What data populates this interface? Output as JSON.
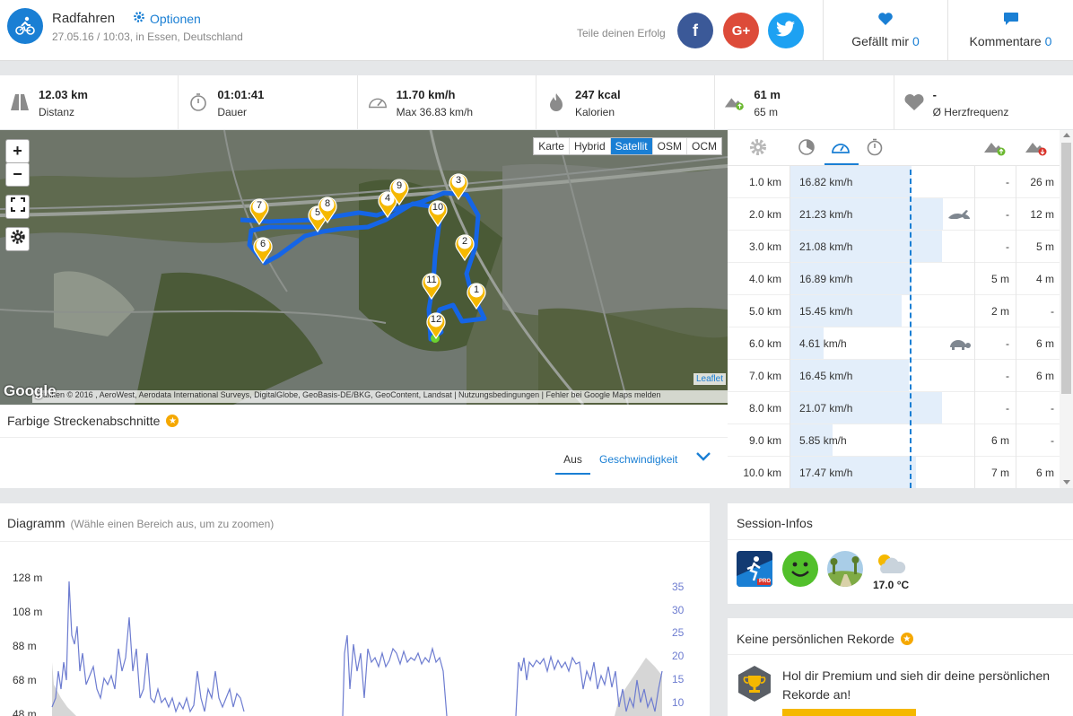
{
  "header": {
    "title": "Radfahren",
    "options_label": "Optionen",
    "meta": "27.05.16 / 10:03, in Essen, Deutschland",
    "share_label": "Teile deinen Erfolg",
    "social": {
      "facebook": "f",
      "google": "G+"
    },
    "like_label": "Gefällt mir",
    "like_count": "0",
    "comment_label": "Kommentare",
    "comment_count": "0"
  },
  "stats": [
    {
      "icon": "road-icon",
      "value": "12.03 km",
      "label": "Distanz"
    },
    {
      "icon": "stopwatch-icon",
      "value": "01:01:41",
      "label": "Dauer"
    },
    {
      "icon": "speedometer-icon",
      "value": "11.70 km/h",
      "label": "Max 36.83 km/h"
    },
    {
      "icon": "flame-icon",
      "value": "247 kcal",
      "label": "Kalorien"
    },
    {
      "icon": "elevation-up-icon",
      "value": "61 m",
      "label": "65 m"
    },
    {
      "icon": "heart-icon",
      "value": "-",
      "label": "Ø Herzfrequenz"
    }
  ],
  "map": {
    "zoom_in": "+",
    "zoom_out": "−",
    "types": [
      "Karte",
      "Hybrid",
      "Satellit",
      "OSM",
      "OCM"
    ],
    "active_type": "Satellit",
    "attribution": "Grafiken © 2016 , AeroWest, Aerodata International Surveys, DigitalGlobe, GeoBasis-DE/BKG, GeoContent, Landsat  |  Nutzungsbedingungen  |  Fehler bei Google Maps melden",
    "leaflet": "Leaflet",
    "google": "Google",
    "markers": [
      "1",
      "2",
      "3",
      "4",
      "5",
      "6",
      "7",
      "8",
      "9",
      "10",
      "11",
      "12"
    ]
  },
  "segments": {
    "title": "Farbige Streckenabschnitte",
    "option_off": "Aus",
    "option_speed": "Geschwindigkeit"
  },
  "splits": {
    "rows": [
      {
        "km": "1.0 km",
        "speed": "16.82 km/h",
        "speed_value": 16.82,
        "up": "-",
        "down": "26 m",
        "badge": ""
      },
      {
        "km": "2.0 km",
        "speed": "21.23 km/h",
        "speed_value": 21.23,
        "up": "-",
        "down": "12 m",
        "badge": "hare-icon"
      },
      {
        "km": "3.0 km",
        "speed": "21.08 km/h",
        "speed_value": 21.08,
        "up": "-",
        "down": "5 m",
        "badge": ""
      },
      {
        "km": "4.0 km",
        "speed": "16.89 km/h",
        "speed_value": 16.89,
        "up": "5 m",
        "down": "4 m",
        "badge": ""
      },
      {
        "km": "5.0 km",
        "speed": "15.45 km/h",
        "speed_value": 15.45,
        "up": "2 m",
        "down": "-",
        "badge": ""
      },
      {
        "km": "6.0 km",
        "speed": "4.61 km/h",
        "speed_value": 4.61,
        "up": "-",
        "down": "6 m",
        "badge": "turtle-icon"
      },
      {
        "km": "7.0 km",
        "speed": "16.45 km/h",
        "speed_value": 16.45,
        "up": "-",
        "down": "6 m",
        "badge": ""
      },
      {
        "km": "8.0 km",
        "speed": "21.07 km/h",
        "speed_value": 21.07,
        "up": "-",
        "down": "-",
        "badge": ""
      },
      {
        "km": "9.0 km",
        "speed": "5.85 km/h",
        "speed_value": 5.85,
        "up": "6 m",
        "down": "-",
        "badge": ""
      },
      {
        "km": "10.0 km",
        "speed": "17.47 km/h",
        "speed_value": 17.47,
        "up": "7 m",
        "down": "6 m",
        "badge": ""
      }
    ]
  },
  "diagram": {
    "title": "Diagramm",
    "hint": "(Wähle einen Bereich aus, um zu zoomen)",
    "y_left": [
      "128 m",
      "108 m",
      "88 m",
      "68 m",
      "48 m"
    ],
    "y_right": [
      "35",
      "30",
      "25",
      "20",
      "15",
      "10"
    ]
  },
  "session": {
    "title": "Session-Infos",
    "temperature": "17.0 °C"
  },
  "records": {
    "title": "Keine persönlichen Rekorde",
    "premium_text": "Hol dir Premium und sieh dir deine persönlichen Rekorde an!"
  },
  "colors": {
    "accent": "#1a7fd4",
    "route": "#1565e6",
    "marker": "#f5b800",
    "chart_line": "#6d7cd0"
  }
}
